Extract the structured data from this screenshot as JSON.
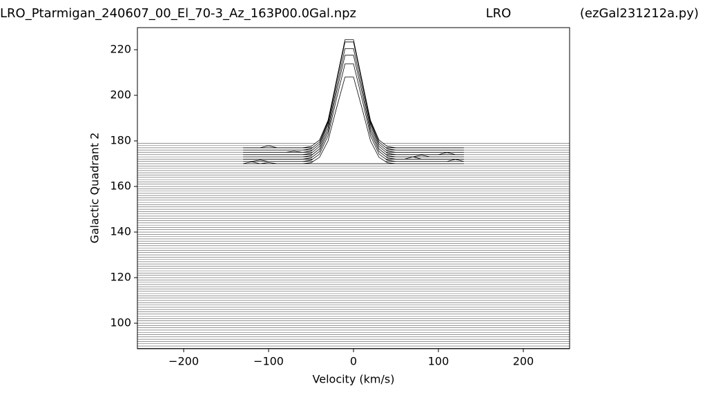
{
  "chart_data": {
    "type": "ridgeline",
    "titles": [
      "LRO_Ptarmigan_240607_00_El_70-3_Az_163P00.0Gal.npz",
      "LRO",
      "(ezGal231212a.py)"
    ],
    "x_label": "Velocity (km/s)",
    "y_label": "Galactic Quadrant 2",
    "xlim": [
      -254.5,
      254.5
    ],
    "ylim": [
      88.8,
      229.7
    ],
    "xticks": [
      {
        "value": -200,
        "label": "−200"
      },
      {
        "value": -100,
        "label": "−100"
      },
      0,
      100,
      200
    ],
    "yticks": [
      100,
      120,
      140,
      160,
      180,
      200,
      220
    ],
    "baselines": [
      89,
      90,
      91,
      92,
      93,
      94,
      95,
      96,
      97,
      98,
      99,
      100,
      101,
      102,
      103,
      104,
      105,
      106,
      107,
      108,
      109,
      110,
      111,
      112,
      113,
      114,
      115,
      116,
      117,
      118,
      119,
      120,
      121,
      122,
      123,
      124,
      125,
      126,
      127,
      128,
      129,
      130,
      131,
      132,
      133,
      134,
      135,
      136,
      137,
      138,
      139,
      140,
      141,
      142,
      143,
      144,
      145,
      146,
      147,
      148,
      149,
      150,
      151,
      152,
      153,
      154,
      155,
      156,
      157,
      158,
      159,
      160,
      161,
      162,
      163,
      164,
      165,
      166,
      167,
      168,
      169,
      170,
      171,
      172,
      173,
      174,
      175,
      176,
      177,
      178,
      179
    ],
    "baseline_color": "#555555",
    "x": [
      -130,
      -120,
      -110,
      -100,
      -90,
      -80,
      -70,
      -60,
      -50,
      -40,
      -30,
      -20,
      -10,
      0,
      10,
      20,
      30,
      40,
      50,
      60,
      70,
      80,
      90,
      100,
      110,
      120,
      130
    ],
    "series": [
      {
        "color": "#000000",
        "values": [
          177,
          177,
          177,
          177.9,
          177,
          177,
          177,
          177,
          177.5,
          180.4,
          189,
          206.3,
          222.6,
          222.6,
          206.3,
          189,
          180.4,
          177.5,
          177,
          177,
          177,
          177,
          177,
          177,
          177,
          177,
          177
        ]
      },
      {
        "color": "#000000",
        "values": [
          176,
          176,
          176,
          176,
          176,
          176,
          176,
          176,
          176.5,
          179.5,
          188.5,
          206.5,
          223.5,
          223.5,
          206.5,
          188.5,
          179.5,
          176.5,
          176,
          176,
          176,
          176,
          176,
          176,
          176,
          176,
          176
        ]
      },
      {
        "color": "#000000",
        "values": [
          175,
          175,
          175,
          175,
          175,
          175,
          175.5,
          175,
          175.5,
          178.6,
          188,
          206.7,
          224.4,
          224.4,
          206.7,
          188,
          178.6,
          175.5,
          175,
          175,
          175,
          175,
          175,
          175,
          175,
          175,
          175
        ]
      },
      {
        "color": "#000000",
        "values": [
          174,
          174,
          174,
          174,
          174,
          174,
          174,
          174,
          174.5,
          177.6,
          187,
          205.7,
          223.4,
          223.4,
          205.7,
          187,
          177.6,
          174.5,
          174,
          174,
          174,
          174,
          174,
          174,
          174.9,
          174,
          174
        ]
      },
      {
        "color": "#000000",
        "values": [
          173,
          173,
          173,
          173,
          173,
          173,
          173,
          173,
          173.5,
          176.5,
          185.5,
          203.5,
          220.5,
          220.5,
          203.5,
          185.5,
          176.5,
          173.5,
          173,
          173,
          173,
          173.8,
          173,
          173,
          173,
          173,
          173
        ]
      },
      {
        "color": "#000000",
        "values": [
          172,
          172,
          172,
          172,
          172,
          172,
          172,
          172,
          172.5,
          175.4,
          184,
          201.3,
          217.6,
          217.6,
          201.3,
          184,
          175.4,
          172.5,
          172,
          172,
          173,
          172,
          172,
          172,
          172,
          172,
          172
        ]
      },
      {
        "color": "#000000",
        "values": [
          171,
          171,
          171.6,
          171,
          171,
          171,
          171,
          171,
          171.5,
          174.2,
          182.3,
          198.5,
          213.8,
          213.8,
          198.5,
          182.3,
          174.2,
          171.5,
          171,
          171,
          171,
          171,
          171,
          171,
          171,
          171.9,
          171
        ]
      },
      {
        "color": "#000000",
        "values": [
          170,
          170.8,
          170,
          170.5,
          170,
          170,
          170,
          170,
          170.4,
          172.8,
          180,
          194.4,
          208,
          208,
          194.4,
          180,
          172.8,
          170.4,
          170,
          170,
          170,
          170,
          170,
          170,
          170,
          170,
          170
        ]
      }
    ]
  }
}
